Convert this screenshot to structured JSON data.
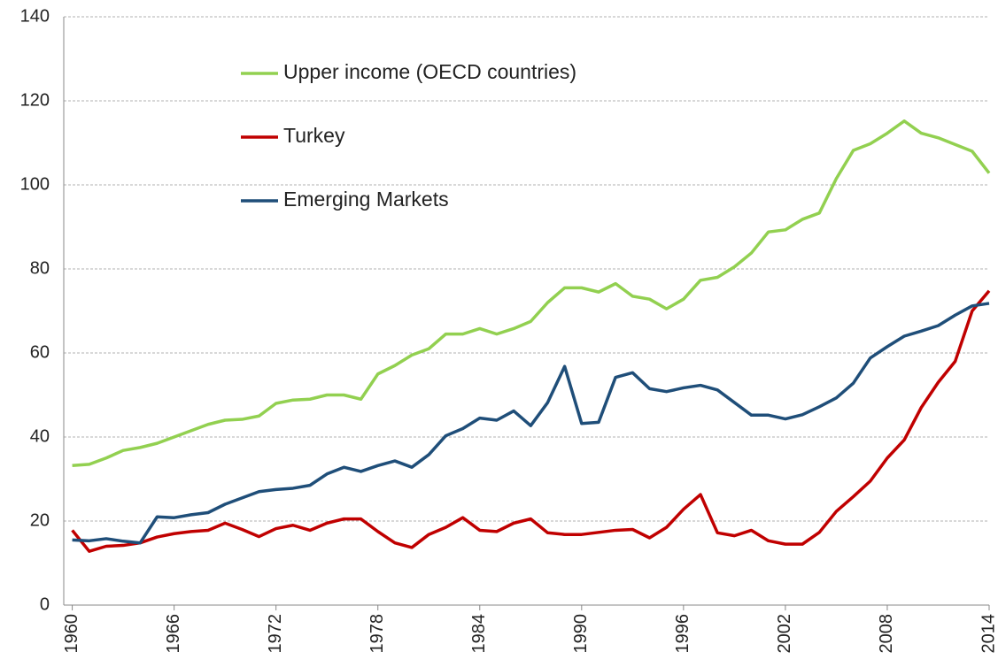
{
  "chart_data": {
    "type": "line",
    "x": [
      1960,
      1961,
      1962,
      1963,
      1964,
      1965,
      1966,
      1967,
      1968,
      1969,
      1970,
      1971,
      1972,
      1973,
      1974,
      1975,
      1976,
      1977,
      1978,
      1979,
      1980,
      1981,
      1982,
      1983,
      1984,
      1985,
      1986,
      1987,
      1988,
      1989,
      1990,
      1991,
      1992,
      1993,
      1994,
      1995,
      1996,
      1997,
      1998,
      1999,
      2000,
      2001,
      2002,
      2003,
      2004,
      2005,
      2006,
      2007,
      2008,
      2009,
      2010,
      2011,
      2012,
      2013,
      2014
    ],
    "series": [
      {
        "name": "Upper income (OECD countries)",
        "color": "#92d050",
        "values": [
          33.2,
          33.5,
          35,
          36.8,
          37.5,
          38.5,
          40,
          41.5,
          43,
          44,
          44.2,
          45,
          48,
          48.8,
          49,
          50,
          50,
          49,
          55,
          57,
          59.5,
          61,
          64.5,
          64.5,
          65.8,
          64.5,
          65.8,
          67.5,
          72,
          75.5,
          75.5,
          74.5,
          76.5,
          73.5,
          72.8,
          70.5,
          72.8,
          77.3,
          78,
          80.5,
          83.8,
          88.8,
          89.3,
          91.8,
          93.3,
          101.5,
          108.2,
          109.8,
          112.3,
          115.2,
          112.3,
          111.2,
          109.6,
          108,
          102.8
        ]
      },
      {
        "name": "Turkey",
        "color": "#c00000",
        "values": [
          17.8,
          12.8,
          14,
          14.2,
          14.8,
          16.2,
          17,
          17.5,
          17.8,
          19.5,
          18,
          16.3,
          18.2,
          19,
          17.8,
          19.5,
          20.5,
          20.5,
          17.5,
          14.8,
          13.7,
          16.8,
          18.5,
          20.8,
          17.8,
          17.5,
          19.5,
          20.5,
          17.2,
          16.8,
          16.8,
          17.3,
          17.8,
          18,
          16,
          18.5,
          22.8,
          26.3,
          17.2,
          16.5,
          17.8,
          15.3,
          14.5,
          14.5,
          17.3,
          22.3,
          25.8,
          29.5,
          35,
          39.3,
          47,
          53,
          58,
          70,
          74.8
        ]
      },
      {
        "name": "Emerging Markets",
        "color": "#1f4e79",
        "values": [
          15.5,
          15.3,
          15.8,
          15.2,
          14.8,
          21,
          20.8,
          21.5,
          22,
          24,
          25.5,
          27,
          27.5,
          27.8,
          28.5,
          31.2,
          32.8,
          31.8,
          33.2,
          34.3,
          32.8,
          35.8,
          40.3,
          42,
          44.5,
          44,
          46.2,
          42.7,
          48.2,
          56.8,
          43.2,
          43.5,
          54.2,
          55.3,
          51.5,
          50.8,
          51.7,
          52.3,
          51.2,
          48.2,
          45.2,
          45.2,
          44.3,
          45.3,
          47.2,
          49.3,
          52.8,
          58.8,
          61.5,
          64,
          65.2,
          66.5,
          69,
          71.2,
          71.8
        ]
      }
    ],
    "xlim": [
      1959.5,
      2014
    ],
    "xticks": [
      1960,
      1966,
      1972,
      1978,
      1984,
      1990,
      1996,
      2002,
      2008,
      2014
    ],
    "ylim": [
      0,
      140
    ],
    "yticks": [
      0,
      20,
      40,
      60,
      80,
      100,
      120,
      140
    ],
    "grid": true
  }
}
